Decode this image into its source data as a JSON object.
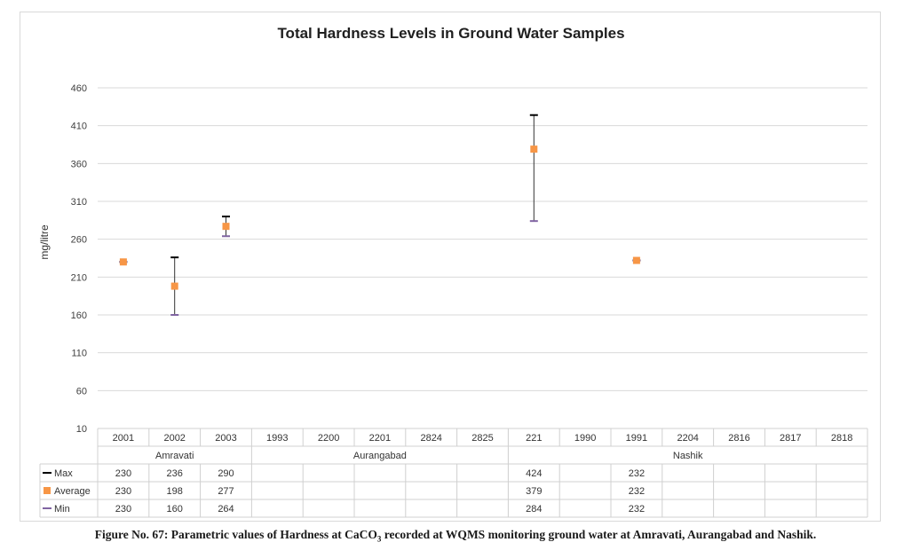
{
  "chart_data": {
    "type": "stock-hi-lo-avg",
    "title": "Total Hardness Levels in Ground Water Samples",
    "ylabel": "mg/litre",
    "xlabel": "",
    "ylim": [
      10,
      460
    ],
    "yticks": [
      10,
      60,
      110,
      160,
      210,
      260,
      310,
      360,
      410,
      460
    ],
    "grid": true,
    "categories": [
      "2001",
      "2002",
      "2003",
      "1993",
      "2200",
      "2201",
      "2824",
      "2825",
      "221",
      "1990",
      "1991",
      "2204",
      "2816",
      "2817",
      "2818"
    ],
    "groups": [
      {
        "name": "Amravati",
        "count": 3
      },
      {
        "name": "Aurangabad",
        "count": 5
      },
      {
        "name": "Nashik",
        "count": 7
      }
    ],
    "series": [
      {
        "name": "Max",
        "color": "#000000",
        "values": [
          230,
          236,
          290,
          null,
          null,
          null,
          null,
          null,
          424,
          null,
          232,
          null,
          null,
          null,
          null
        ]
      },
      {
        "name": "Average",
        "color": "#f79646",
        "values": [
          230,
          198,
          277,
          null,
          null,
          null,
          null,
          null,
          379,
          null,
          232,
          null,
          null,
          null,
          null
        ]
      },
      {
        "name": "Min",
        "color": "#8064a2",
        "values": [
          230,
          160,
          264,
          null,
          null,
          null,
          null,
          null,
          284,
          null,
          232,
          null,
          null,
          null,
          null
        ]
      }
    ]
  },
  "caption": {
    "prefix": "Figure No. 67: Parametric values of Hardness at CaCO",
    "subscript": "3",
    "suffix": " recorded at WQMS monitoring ground water at Amravati, Aurangabad and Nashik."
  }
}
